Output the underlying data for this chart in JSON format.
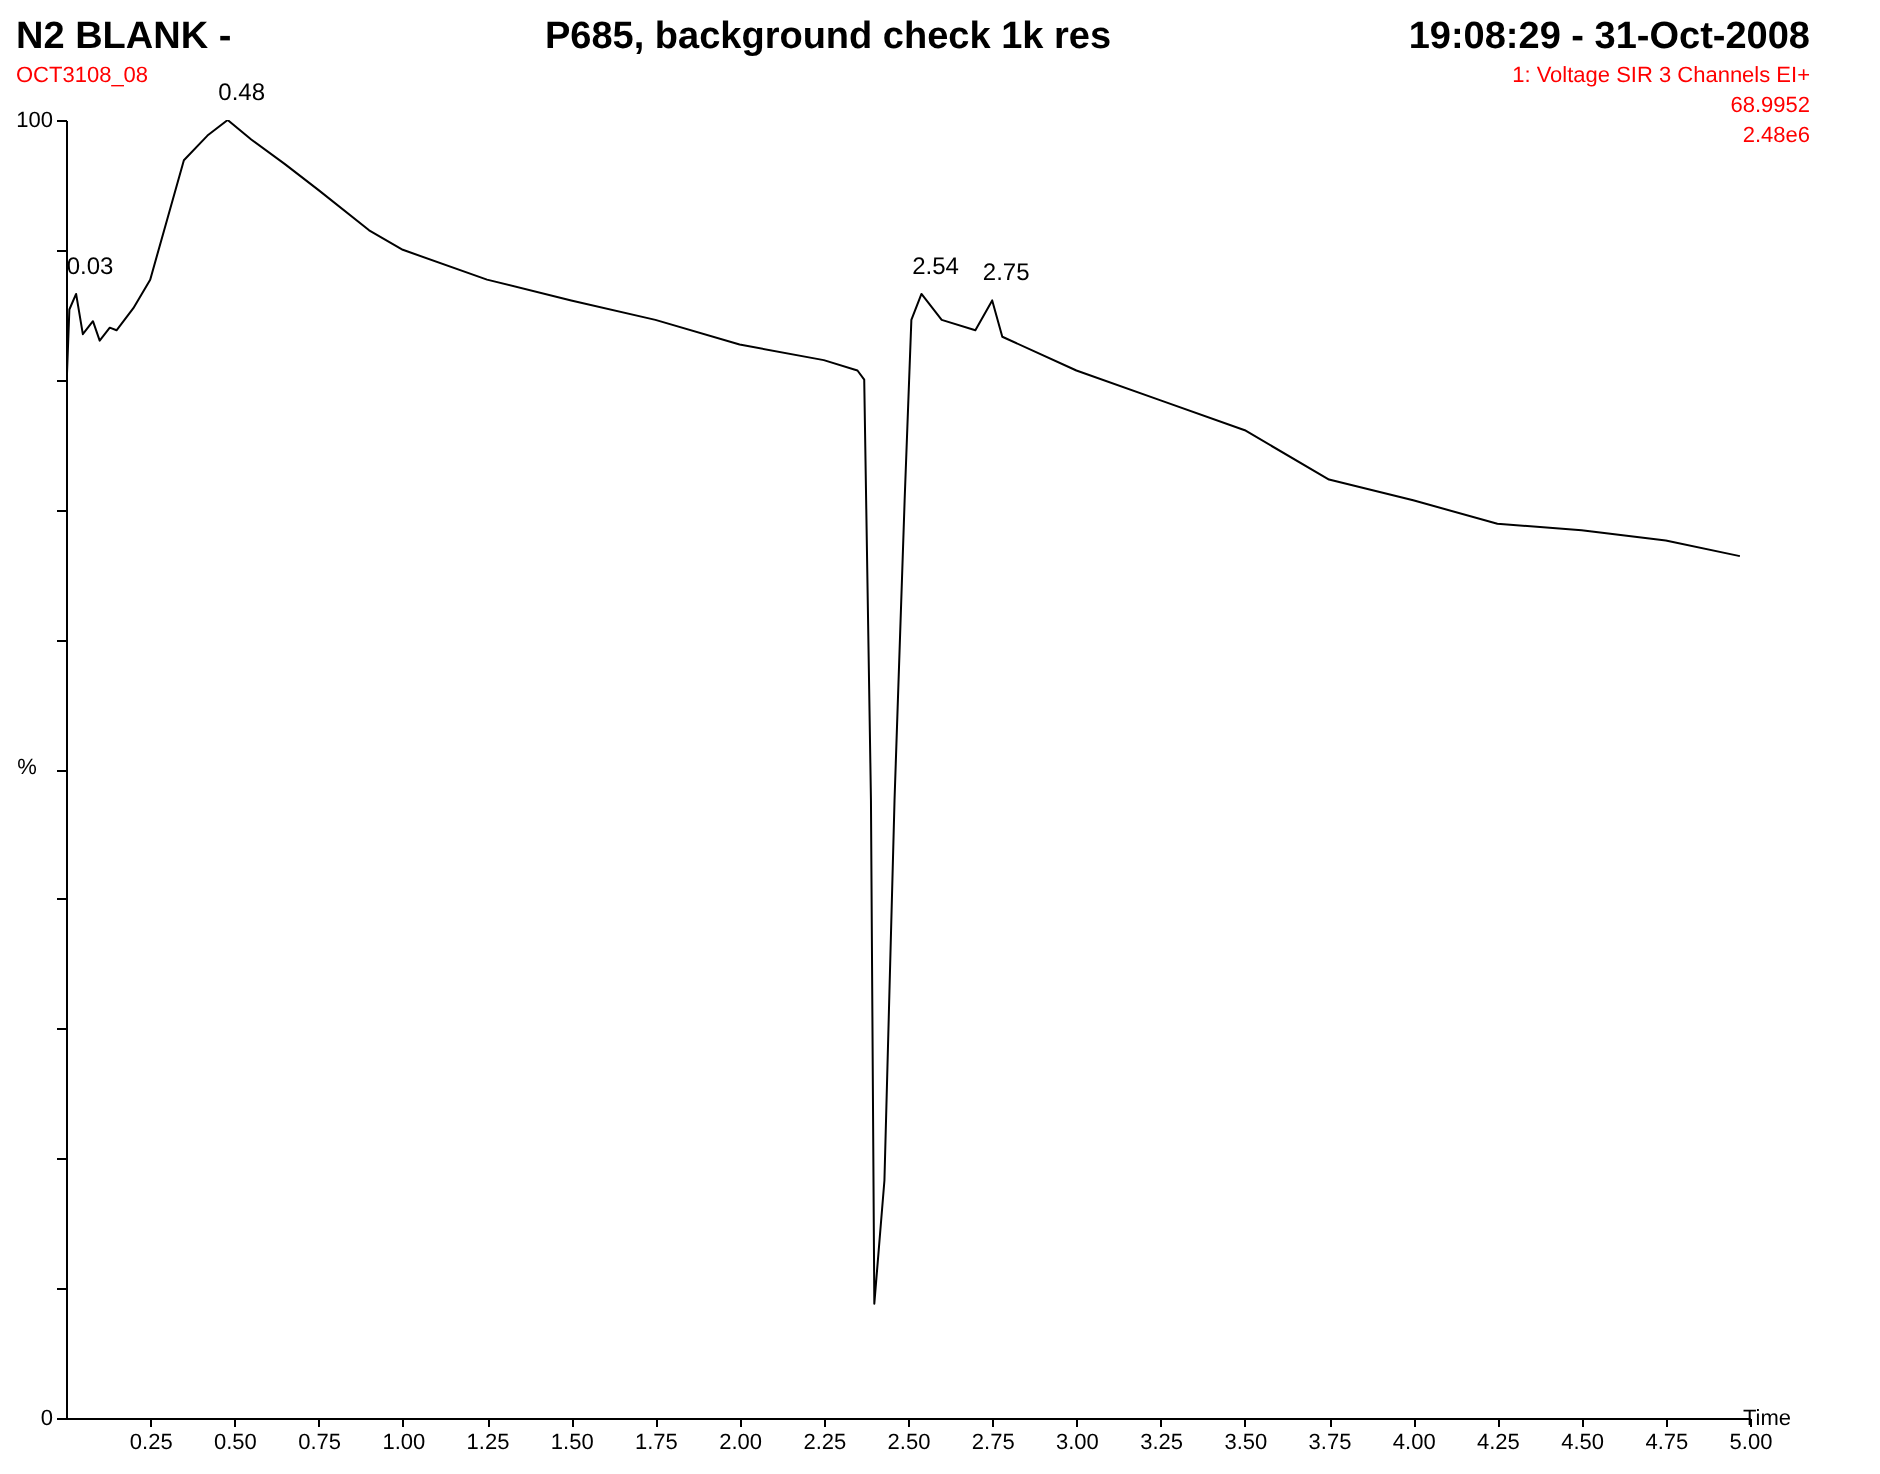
{
  "chart_data": {
    "type": "line",
    "title": "P685, background check 1k res",
    "xlabel": "Time",
    "ylabel": "%",
    "x": [
      0.0,
      0.01,
      0.03,
      0.05,
      0.08,
      0.1,
      0.13,
      0.15,
      0.2,
      0.25,
      0.3,
      0.35,
      0.42,
      0.48,
      0.55,
      0.65,
      0.75,
      0.9,
      1.0,
      1.25,
      1.5,
      1.75,
      2.0,
      2.25,
      2.35,
      2.37,
      2.39,
      2.4,
      2.43,
      2.46,
      2.49,
      2.51,
      2.54,
      2.6,
      2.7,
      2.75,
      2.78,
      3.0,
      3.25,
      3.5,
      3.75,
      4.0,
      4.25,
      4.5,
      4.75,
      4.97
    ],
    "series": [
      {
        "color": "#000000",
        "values": [
          78.4,
          85.4,
          86.6,
          83.5,
          84.5,
          83.0,
          84.0,
          83.8,
          85.5,
          87.7,
          92.3,
          96.9,
          98.8,
          100,
          98.5,
          96.6,
          94.6,
          91.5,
          90.0,
          87.7,
          86.1,
          84.6,
          82.7,
          81.5,
          80.7,
          80.0,
          47.6,
          8.8,
          18.3,
          47.6,
          70.7,
          84.6,
          86.6,
          84.6,
          83.8,
          86.1,
          83.3,
          80.7,
          78.4,
          76.1,
          72.3,
          70.7,
          68.9,
          68.4,
          67.6,
          66.4
        ]
      }
    ],
    "xlim": [
      0,
      5.0
    ],
    "xticks": [
      0.25,
      {
        "value": 0.5,
        "label": "0.50"
      },
      0.75,
      {
        "value": 1.0,
        "label": "1.00"
      },
      1.25,
      {
        "value": 1.5,
        "label": "1.50"
      },
      1.75,
      {
        "value": 2.0,
        "label": "2.00"
      },
      2.25,
      {
        "value": 2.5,
        "label": "2.50"
      },
      2.75,
      {
        "value": 3.0,
        "label": "3.00"
      },
      3.25,
      {
        "value": 3.5,
        "label": "3.50"
      },
      3.75,
      {
        "value": 4.0,
        "label": "4.00"
      },
      4.25,
      {
        "value": 4.5,
        "label": "4.50"
      },
      4.75,
      {
        "value": 5.0,
        "label": "5.00"
      }
    ],
    "ylim": [
      0,
      100
    ],
    "yticks": [
      0,
      {
        "value": 10,
        "label": null
      },
      {
        "value": 20,
        "label": null
      },
      {
        "value": 30,
        "label": null
      },
      {
        "value": 40,
        "label": null
      },
      {
        "value": 50,
        "label": null
      },
      {
        "value": 60,
        "label": null
      },
      {
        "value": 70,
        "label": null
      },
      {
        "value": 80,
        "label": null
      },
      {
        "value": 90,
        "label": null
      },
      100
    ],
    "grid": false,
    "annotations": [
      "N2 BLANK -",
      "19:08:29 - 31-Oct-2008",
      "OCT3108_08",
      "1: Voltage SIR 3 Channels EI+",
      "68.9952",
      "2.48e6",
      {
        "text": "0.03",
        "x": 0.03,
        "y": 86.6
      },
      {
        "text": "0.48",
        "x": 0.48,
        "y": 100
      },
      {
        "text": "2.54",
        "x": 2.54,
        "y": 86.6
      },
      {
        "text": "2.75",
        "x": 2.75,
        "y": 86.1
      }
    ]
  }
}
